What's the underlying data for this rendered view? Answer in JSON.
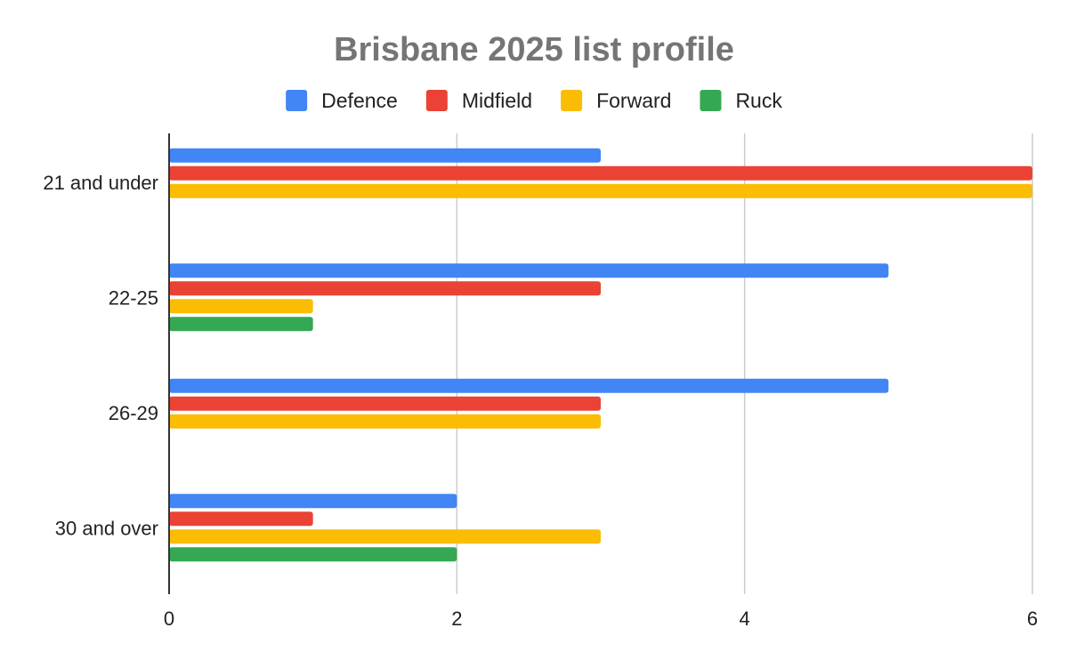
{
  "chart_data": {
    "type": "bar",
    "orientation": "horizontal",
    "title": "Brisbane 2025 list profile",
    "xlabel": "",
    "ylabel": "",
    "categories": [
      "21 and under",
      "22-25",
      "26-29",
      "30 and over"
    ],
    "series": [
      {
        "name": "Defence",
        "color": "#4285F4",
        "values": [
          3,
          5,
          5,
          2
        ]
      },
      {
        "name": "Midfield",
        "color": "#EA4335",
        "values": [
          6,
          3,
          3,
          1
        ]
      },
      {
        "name": "Forward",
        "color": "#FBBC04",
        "values": [
          6,
          1,
          3,
          3
        ]
      },
      {
        "name": "Ruck",
        "color": "#34A853",
        "values": [
          0,
          1,
          0,
          2
        ]
      }
    ],
    "xlim": [
      0,
      6
    ],
    "xticks": [
      "0",
      "2",
      "4",
      "6"
    ],
    "grid": true,
    "legend_position": "top"
  }
}
